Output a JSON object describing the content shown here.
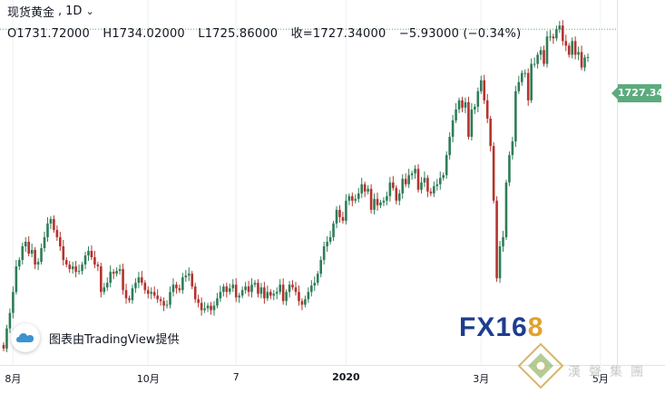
{
  "header": {
    "symbol": "现货黄金",
    "separator": ",",
    "interval": "1D",
    "open": "O1731.72000",
    "high": "H1734.02000",
    "low": "L1725.86000",
    "close": "收=1727.34000",
    "change": "−5.93000 (−0.34%)"
  },
  "price_axis": {
    "last_label": "1727.34"
  },
  "time_axis": [
    {
      "label": "8月",
      "bold": false
    },
    {
      "label": "10月",
      "bold": false
    },
    {
      "label": "7",
      "bold": false
    },
    {
      "label": "2020",
      "bold": true
    },
    {
      "label": "3月",
      "bold": false
    },
    {
      "label": "5月",
      "bold": false
    }
  ],
  "credit": {
    "text": "图表由TradingView提供"
  },
  "watermark": {
    "fx_text": "FX16",
    "fx_eight": "8",
    "hansheng_text": "漢聲集團"
  },
  "colors": {
    "up": "#2e7d57",
    "down": "#b4332e",
    "badge": "#5bab7d",
    "grid": "#eef0f3"
  },
  "chart_data": {
    "type": "candlestick",
    "title": "现货黄金, 1D",
    "last_price": 1727.34,
    "ylim": [
      1390,
      1790
    ],
    "closes": [
      1408,
      1430,
      1447,
      1470,
      1498,
      1505,
      1520,
      1525,
      1512,
      1516,
      1500,
      1503,
      1518,
      1530,
      1545,
      1550,
      1538,
      1530,
      1520,
      1505,
      1500,
      1495,
      1498,
      1492,
      1493,
      1500,
      1510,
      1515,
      1508,
      1500,
      1498,
      1470,
      1475,
      1480,
      1492,
      1490,
      1493,
      1495,
      1472,
      1463,
      1461,
      1474,
      1480,
      1486,
      1480,
      1472,
      1468,
      1470,
      1466,
      1462,
      1460,
      1455,
      1456,
      1470,
      1478,
      1474,
      1472,
      1486,
      1488,
      1490,
      1476,
      1462,
      1458,
      1450,
      1452,
      1455,
      1450,
      1455,
      1463,
      1470,
      1476,
      1470,
      1474,
      1478,
      1464,
      1466,
      1472,
      1476,
      1470,
      1478,
      1480,
      1468,
      1475,
      1463,
      1470,
      1466,
      1468,
      1470,
      1478,
      1460,
      1470,
      1478,
      1475,
      1470,
      1460,
      1456,
      1462,
      1470,
      1477,
      1480,
      1490,
      1505,
      1520,
      1525,
      1530,
      1545,
      1560,
      1552,
      1548,
      1570,
      1575,
      1570,
      1572,
      1578,
      1588,
      1580,
      1583,
      1560,
      1572,
      1565,
      1568,
      1570,
      1575,
      1590,
      1584,
      1570,
      1578,
      1594,
      1588,
      1598,
      1600,
      1605,
      1582,
      1590,
      1595,
      1580,
      1578,
      1586,
      1588,
      1595,
      1598,
      1620,
      1640,
      1658,
      1670,
      1680,
      1672,
      1678,
      1640,
      1670,
      1673,
      1690,
      1702,
      1680,
      1660,
      1630,
      1570,
      1485,
      1520,
      1530,
      1590,
      1620,
      1635,
      1690,
      1700,
      1710,
      1710,
      1680,
      1720,
      1720,
      1730,
      1735,
      1720,
      1750,
      1750,
      1748,
      1758,
      1762,
      1745,
      1740,
      1730,
      1745,
      1730,
      1733,
      1716,
      1727,
      1727.34
    ]
  }
}
